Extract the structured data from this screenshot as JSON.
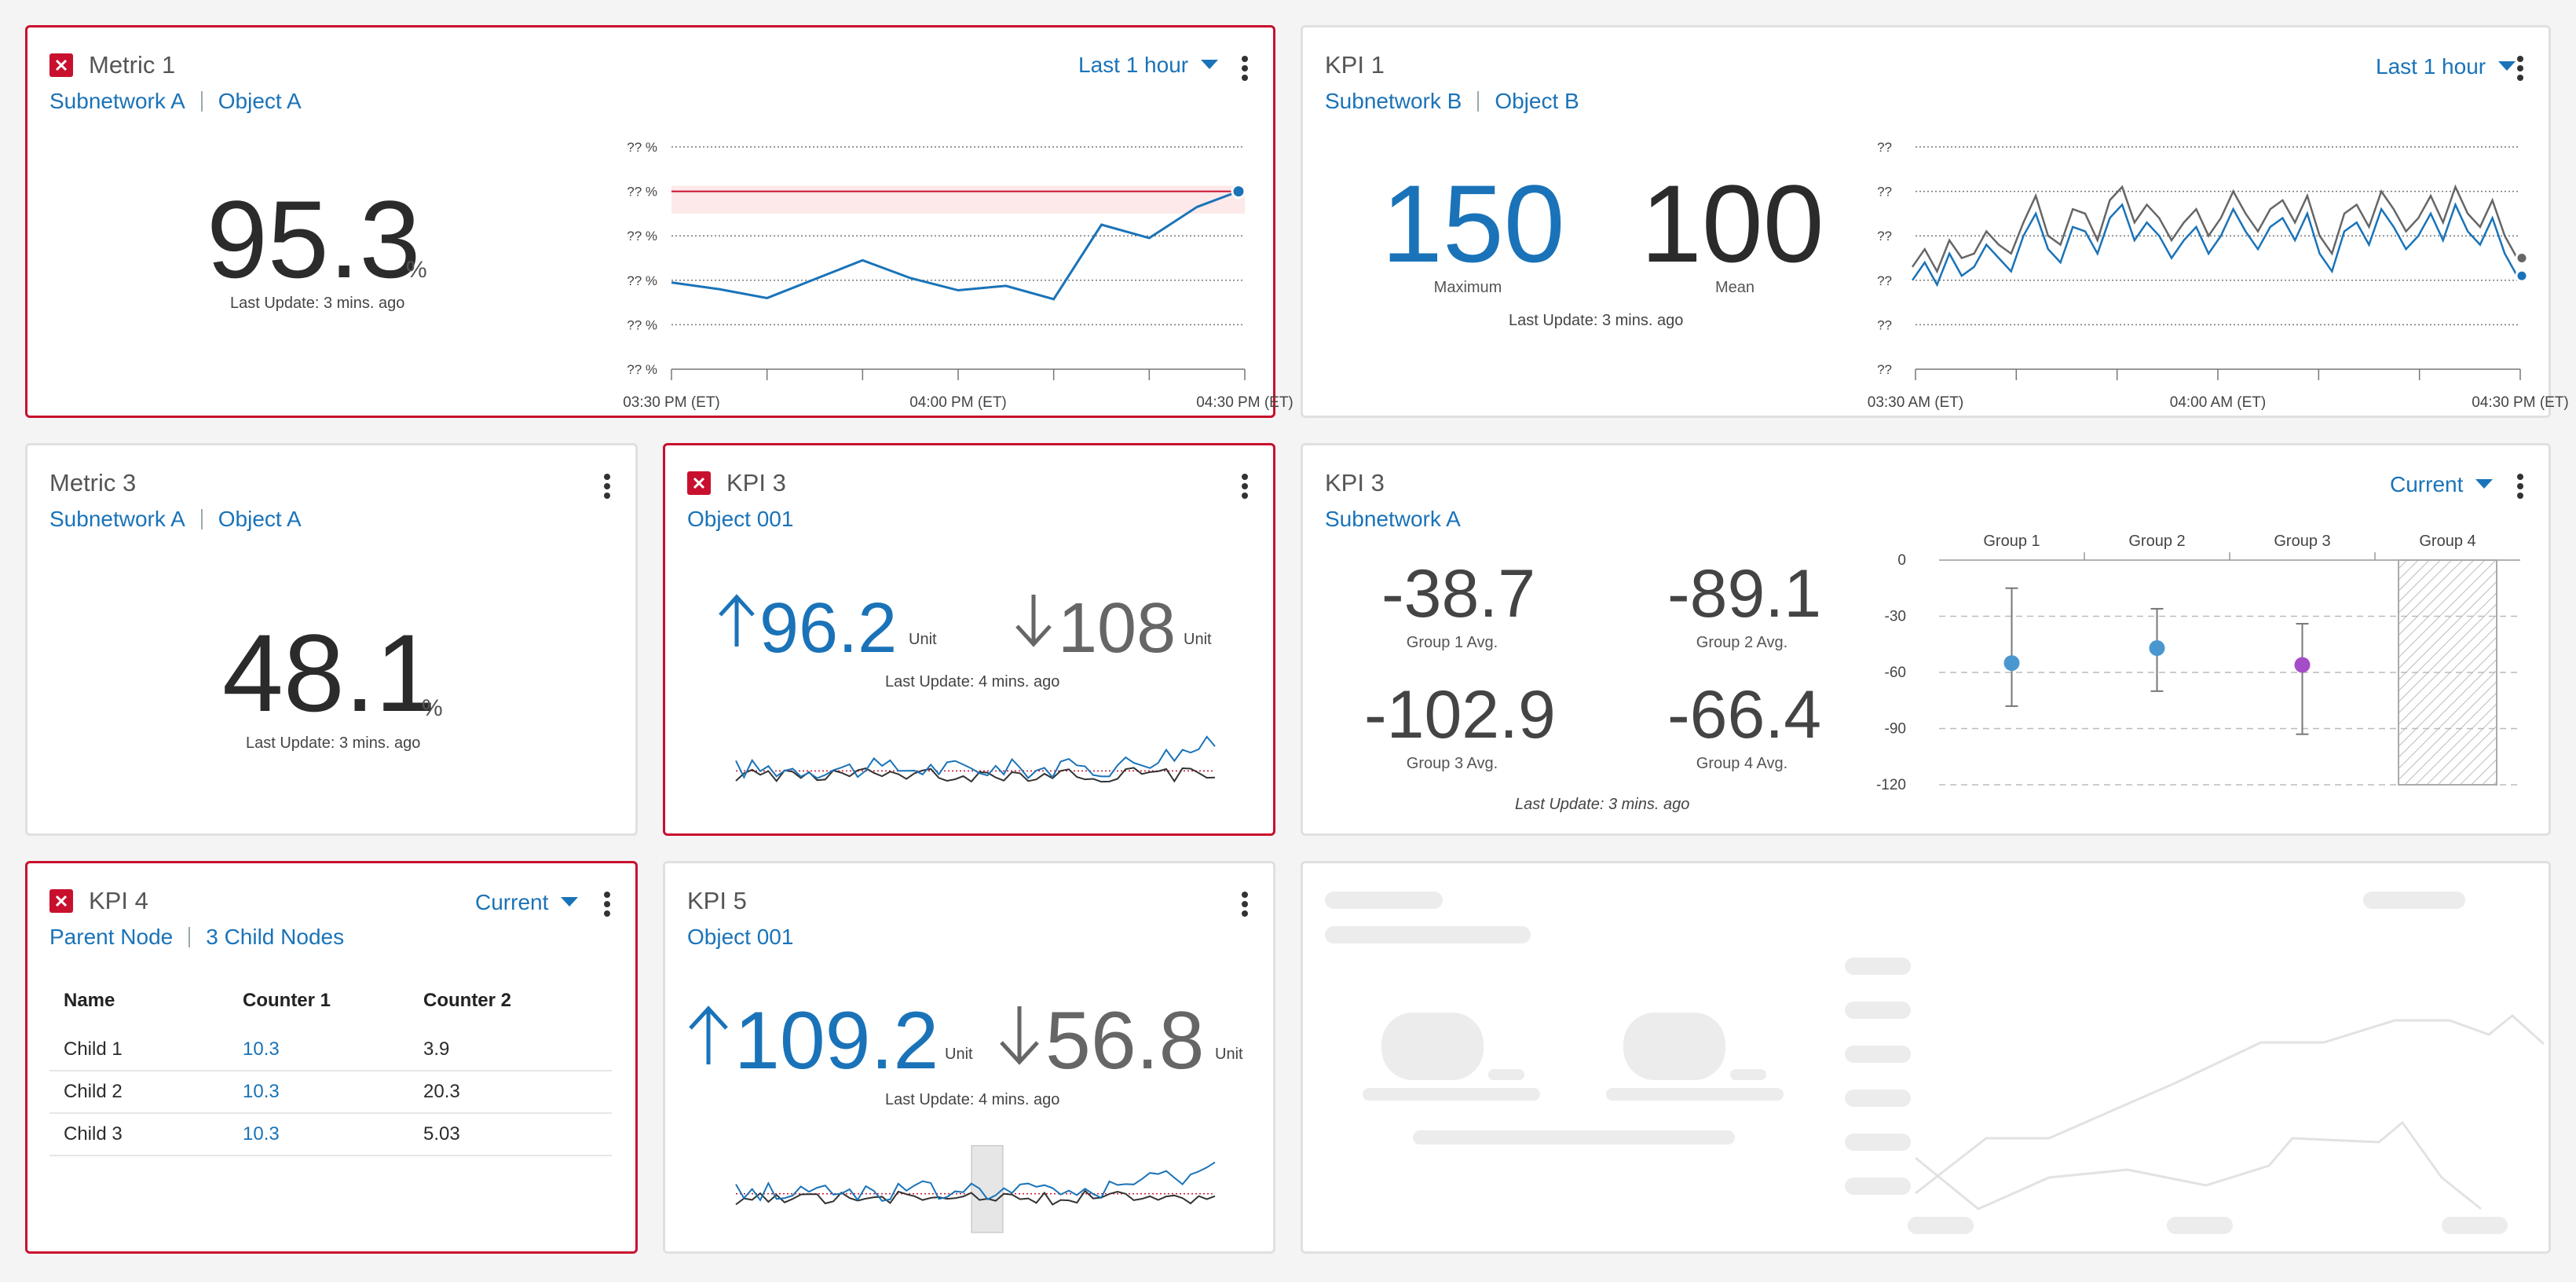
{
  "card_metric1": {
    "title": "Metric 1",
    "sub1": "Subnetwork A",
    "sub2": "Object A",
    "selector": "Last 1 hour",
    "value": "95.3",
    "unit": "%",
    "update": "Last Update: 3 mins. ago",
    "y_ticks": [
      "?? %",
      "?? %",
      "?? %",
      "?? %",
      "?? %",
      "?? %"
    ],
    "x_ticks": [
      "03:30 PM (ET)",
      "04:00 PM (ET)",
      "04:30 PM (ET)"
    ]
  },
  "card_kpi1": {
    "title": "KPI 1",
    "sub1": "Subnetwork B",
    "sub2": "Object B",
    "selector": "Last 1 hour",
    "value1": "150",
    "label1": "Maximum",
    "value2": "100",
    "label2": "Mean",
    "update": "Last Update: 3  mins. ago",
    "y_ticks": [
      "??",
      "??",
      "??",
      "??",
      "??",
      "??"
    ],
    "x_ticks": [
      "03:30 AM (ET)",
      "04:00 AM (ET)",
      "04:30 PM (ET)"
    ]
  },
  "card_metric3": {
    "title": "Metric 3",
    "sub1": "Subnetwork A",
    "sub2": "Object A",
    "value": "48.1",
    "unit": "%",
    "update": "Last Update: 3 mins. ago"
  },
  "card_kpi3a": {
    "title": "KPI 3",
    "sub1": "Object 001",
    "up_value": "96.2",
    "up_unit": "Unit",
    "down_value": "108",
    "down_unit": "Unit",
    "update": "Last Update: 4 mins. ago"
  },
  "card_kpi3b": {
    "title": "KPI 3",
    "sub1": "Subnetwork A",
    "selector": "Current",
    "stats": [
      {
        "value": "-38.7",
        "label": "Group 1 Avg."
      },
      {
        "value": "-89.1",
        "label": "Group 2 Avg."
      },
      {
        "value": "-102.9",
        "label": "Group 3 Avg."
      },
      {
        "value": "-66.4",
        "label": "Group 4 Avg."
      }
    ],
    "update": "Last Update: 3 mins. ago"
  },
  "card_kpi4": {
    "title": "KPI 4",
    "sub1": "Parent Node",
    "sub2": "3 Child Nodes",
    "selector": "Current",
    "headers": [
      "Name",
      "Counter 1",
      "Counter 2"
    ],
    "rows": [
      [
        "Child 1",
        "10.3",
        "3.9"
      ],
      [
        "Child 2",
        "10.3",
        "20.3"
      ],
      [
        "Child 3",
        "10.3",
        "5.03"
      ]
    ]
  },
  "card_kpi5": {
    "title": "KPI 5",
    "sub1": "Object 001",
    "up_value": "109.2",
    "up_unit": "Unit",
    "down_value": "56.8",
    "down_unit": "Unit",
    "update": "Last Update: 4 mins. ago"
  },
  "chart_data": [
    {
      "type": "line",
      "x_ticks": [
        "03:30 PM (ET)",
        "04:00 PM (ET)",
        "04:30 PM (ET)"
      ],
      "y_ticks": [
        "?? %",
        "?? %",
        "?? %",
        "?? %",
        "?? %",
        "?? %"
      ],
      "series": [
        {
          "values": [
            0.78,
            0.72,
            0.64,
            0.81,
            0.98,
            0.82,
            0.71,
            0.75,
            0.63,
            1.3,
            1.18,
            1.46,
            1.6
          ]
        }
      ],
      "threshold_band": [
        1.4,
        1.65
      ],
      "ylim": [
        0,
        2
      ]
    },
    {
      "type": "line",
      "x_ticks": [
        "03:30 AM (ET)",
        "04:00 AM (ET)",
        "04:30 PM (ET)"
      ],
      "y_ticks": [
        "??",
        "??",
        "??",
        "??",
        "??",
        "??"
      ],
      "series": [
        {
          "values": [
            2.0,
            2.4,
            1.9,
            2.6,
            2.1,
            2.3,
            2.8,
            2.5,
            2.2,
            3.0,
            3.5,
            2.7,
            2.4,
            3.2,
            3.1,
            2.6,
            3.4,
            3.7,
            2.9,
            3.3,
            3.0,
            2.5,
            2.9,
            3.2,
            2.6,
            3.0,
            3.6,
            3.1,
            2.7,
            3.2,
            3.4,
            2.9,
            3.5,
            2.6,
            2.2,
            3.1,
            3.3,
            2.8,
            3.6,
            3.2,
            2.7,
            3.0,
            3.5,
            2.9,
            3.7,
            3.1,
            2.8,
            3.4,
            2.6,
            2.1
          ]
        },
        {
          "values": [
            2.3,
            2.7,
            2.2,
            2.9,
            2.5,
            2.6,
            3.1,
            2.8,
            2.6,
            3.3,
            3.9,
            3.0,
            2.8,
            3.6,
            3.5,
            2.9,
            3.8,
            4.1,
            3.3,
            3.7,
            3.4,
            2.9,
            3.3,
            3.6,
            3.0,
            3.4,
            4.0,
            3.5,
            3.1,
            3.6,
            3.8,
            3.3,
            3.9,
            3.0,
            2.6,
            3.5,
            3.7,
            3.2,
            4.0,
            3.6,
            3.1,
            3.4,
            3.9,
            3.3,
            4.1,
            3.5,
            3.2,
            3.8,
            3.0,
            2.5
          ]
        }
      ],
      "ylim": [
        0,
        5
      ]
    },
    {
      "type": "scatter",
      "categories": [
        "Group 1",
        "Group 2",
        "Group 3",
        "Group 4"
      ],
      "points": [
        {
          "y": -55,
          "low": -78,
          "high": -15,
          "color": "#4a97d0"
        },
        {
          "y": -47,
          "low": -70,
          "high": -26,
          "color": "#4a97d0"
        },
        {
          "y": -56,
          "low": -93,
          "high": -34,
          "color": "#a54cc8"
        }
      ],
      "y_ticks": [
        0,
        -30,
        -60,
        -90,
        -120
      ],
      "ylim": [
        -120,
        0
      ],
      "no_data_category": "Group 4"
    }
  ]
}
